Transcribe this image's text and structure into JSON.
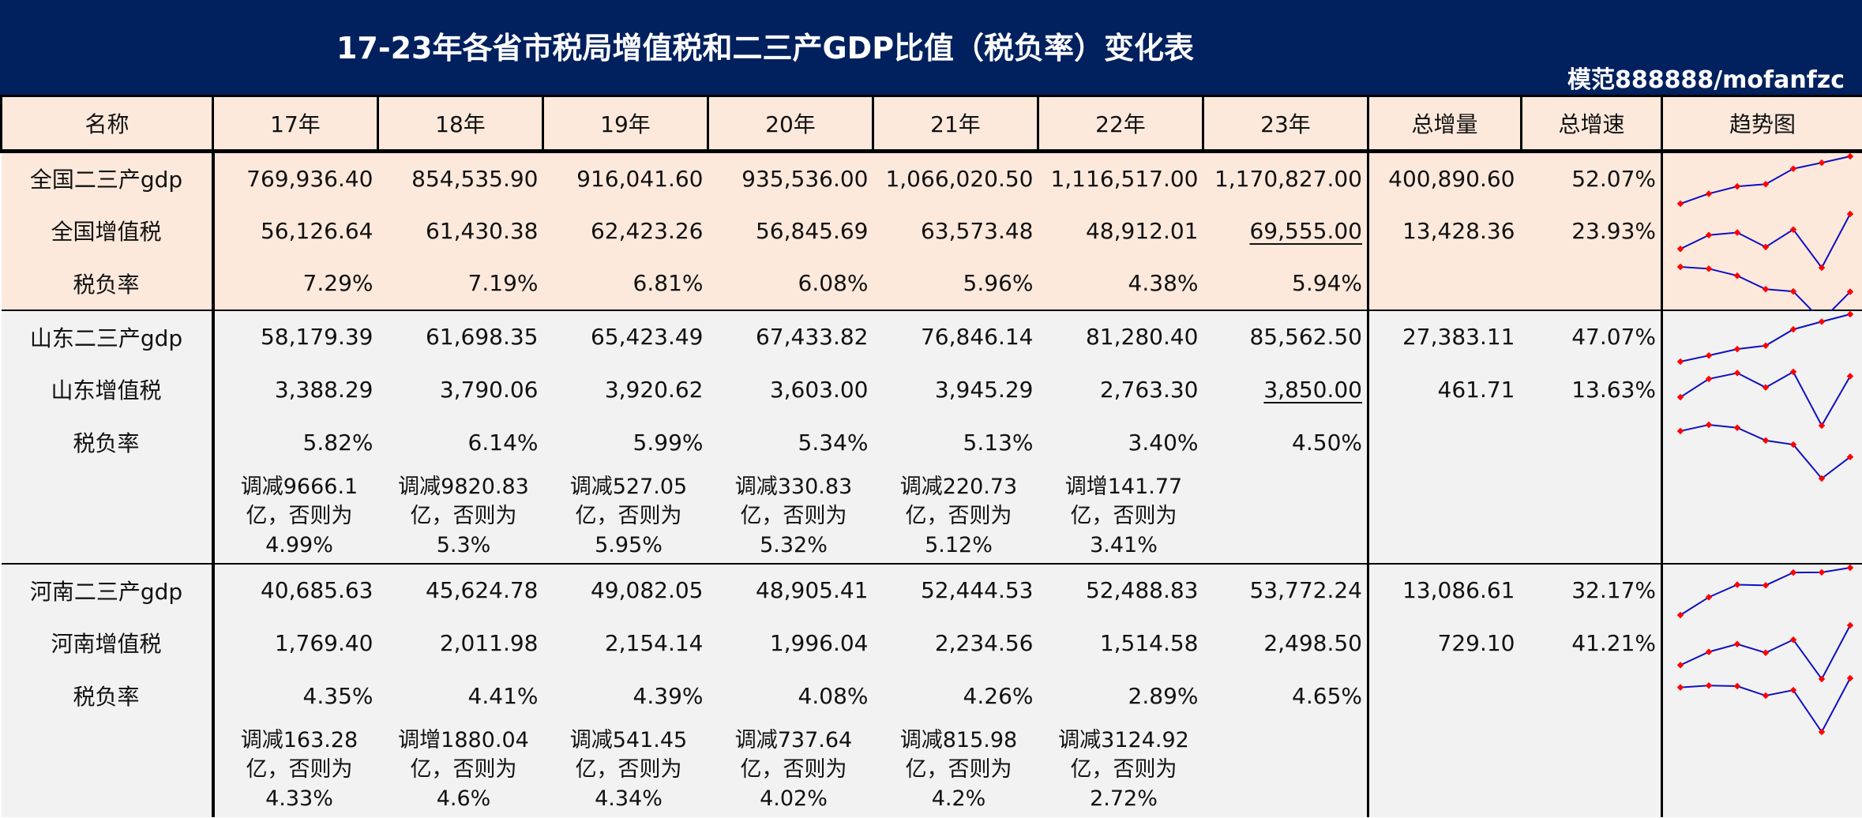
{
  "header": {
    "title": "17-23年各省市税局增值税和二三产GDP比值（税负率）变化表",
    "watermark": "模范888888/mofanfzc",
    "bg_color": "#00205e"
  },
  "columns": [
    "名称",
    "17年",
    "18年",
    "19年",
    "20年",
    "21年",
    "22年",
    "23年",
    "总增量",
    "总增速",
    "趋势图"
  ],
  "groups": [
    {
      "bg": "#fde9dc",
      "rows": [
        {
          "name": "全国二三产gdp",
          "values": [
            "769,936.40",
            "854,535.90",
            "916,041.60",
            "935,536.00",
            "1,066,020.50",
            "1,116,517.00",
            "1,170,827.00"
          ],
          "total_increase": "400,890.60",
          "total_growth": "52.07%",
          "underline_last": false
        },
        {
          "name": "全国增值税",
          "values": [
            "56,126.64",
            "61,430.38",
            "62,423.26",
            "56,845.69",
            "63,573.48",
            "48,912.01",
            "69,555.00"
          ],
          "total_increase": "13,428.36",
          "total_growth": "23.93%",
          "underline_last": true
        },
        {
          "name": "税负率",
          "values": [
            "7.29%",
            "7.19%",
            "6.81%",
            "6.08%",
            "5.96%",
            "4.38%",
            "5.94%"
          ],
          "total_increase": "",
          "total_growth": "",
          "underline_last": false
        }
      ],
      "notes": []
    },
    {
      "bg": "#f2f2f2",
      "rows": [
        {
          "name": "山东二三产gdp",
          "values": [
            "58,179.39",
            "61,698.35",
            "65,423.49",
            "67,433.82",
            "76,846.14",
            "81,280.40",
            "85,562.50"
          ],
          "total_increase": "27,383.11",
          "total_growth": "47.07%",
          "underline_last": false
        },
        {
          "name": "山东增值税",
          "values": [
            "3,388.29",
            "3,790.06",
            "3,920.62",
            "3,603.00",
            "3,945.29",
            "2,763.30",
            "3,850.00"
          ],
          "total_increase": "461.71",
          "total_growth": "13.63%",
          "underline_last": true
        },
        {
          "name": "税负率",
          "values": [
            "5.82%",
            "6.14%",
            "5.99%",
            "5.34%",
            "5.13%",
            "3.40%",
            "4.50%"
          ],
          "total_increase": "",
          "total_growth": "",
          "underline_last": false
        }
      ],
      "notes": [
        "调减9666.1亿，否则为4.99%",
        "调减9820.83亿，否则为5.3%",
        "调减527.05亿，否则为5.95%",
        "调减330.83亿，否则为5.32%",
        "调减220.73亿，否则为5.12%",
        "调增141.77亿，否则为3.41%",
        ""
      ]
    },
    {
      "bg": "#f2f2f2",
      "rows": [
        {
          "name": "河南二三产gdp",
          "values": [
            "40,685.63",
            "45,624.78",
            "49,082.05",
            "48,905.41",
            "52,444.53",
            "52,488.83",
            "53,772.24"
          ],
          "total_increase": "13,086.61",
          "total_growth": "32.17%",
          "underline_last": false
        },
        {
          "name": "河南增值税",
          "values": [
            "1,769.40",
            "2,011.98",
            "2,154.14",
            "1,996.04",
            "2,234.56",
            "1,514.58",
            "2,498.50"
          ],
          "total_increase": "729.10",
          "total_growth": "41.21%",
          "underline_last": false
        },
        {
          "name": "税负率",
          "values": [
            "4.35%",
            "4.41%",
            "4.39%",
            "4.08%",
            "4.26%",
            "2.89%",
            "4.65%"
          ],
          "total_increase": "",
          "total_growth": "",
          "underline_last": false
        }
      ],
      "notes": [
        "调减163.28亿，否则为4.33%",
        "调增1880.04亿，否则为4.6%",
        "调减541.45亿，否则为4.34%",
        "调减737.64亿，否则为4.02%",
        "调减815.98亿，否则为4.2%",
        "调减3124.92亿，否则为2.72%",
        ""
      ]
    }
  ],
  "sparkline_style": {
    "line_color": "#1010c0",
    "marker_color": "#ff0000"
  }
}
